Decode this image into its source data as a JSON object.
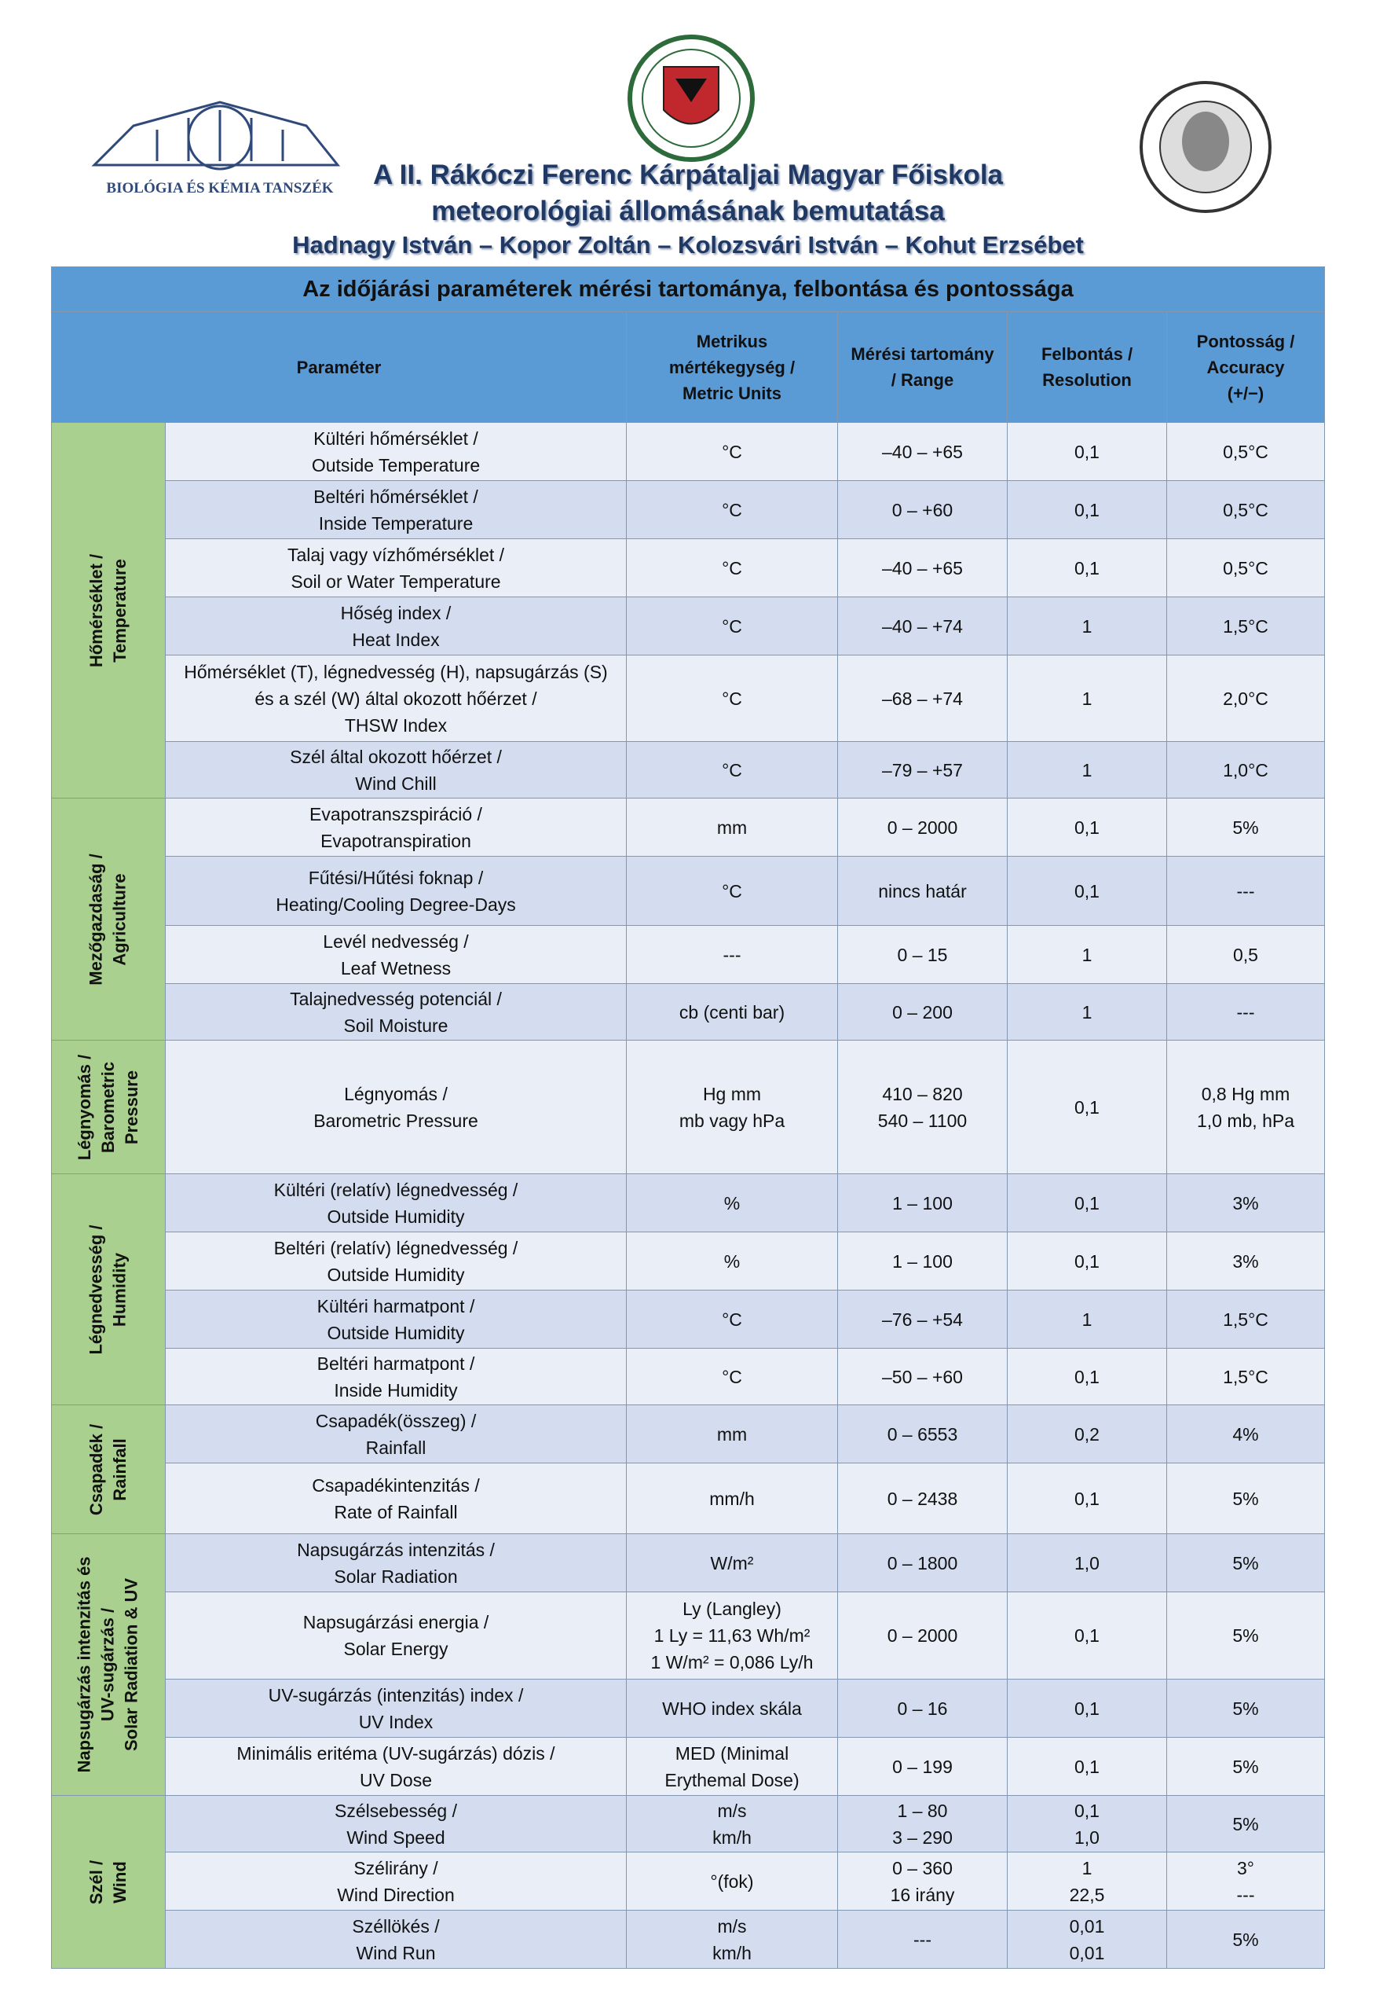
{
  "header": {
    "title": [
      "A II. Rákóczi Ferenc Kárpátaljai Magyar Főiskola",
      "meteorológiai állomásának bemutatása"
    ],
    "authors": "Hadnagy István – Kopor Zoltán – Kolozsvári István – Kohut Erzsébet",
    "logo_text": "BIOLÓGIA ÉS KÉMIA TANSZÉK"
  },
  "table": {
    "title": "Az időjárási paraméterek mérési tartománya, felbontása és pontossága",
    "columns": [
      [
        "Paraméter"
      ],
      [
        "Metrikus",
        "mértékegység /",
        "Metric Units"
      ],
      [
        "Mérési tartomány",
        "/ Range"
      ],
      [
        "Felbontás /",
        "Resolution"
      ],
      [
        "Pontosság /",
        "Accuracy",
        "(+/−)"
      ]
    ],
    "groups": [
      {
        "label": [
          "Hőmérséklet /",
          "Temperature"
        ],
        "rows": [
          [
            [
              "Kültéri hőmérséklet /",
              "Outside Temperature"
            ],
            [
              "°C"
            ],
            [
              "–40 – +65"
            ],
            [
              "0,1"
            ],
            [
              "0,5°C"
            ]
          ],
          [
            [
              "Beltéri hőmérséklet /",
              "Inside Temperature"
            ],
            [
              "°C"
            ],
            [
              "0 – +60"
            ],
            [
              "0,1"
            ],
            [
              "0,5°C"
            ]
          ],
          [
            [
              "Talaj vagy vízhőmérséklet /",
              "Soil or Water Temperature"
            ],
            [
              "°C"
            ],
            [
              "–40 – +65"
            ],
            [
              "0,1"
            ],
            [
              "0,5°C"
            ]
          ],
          [
            [
              "Hőség index /",
              "Heat Index"
            ],
            [
              "°C"
            ],
            [
              "–40 – +74"
            ],
            [
              "1"
            ],
            [
              "1,5°C"
            ]
          ],
          [
            [
              "Hőmérséklet (T), légnedvesség (H), napsugárzás (S)",
              "és a szél (W) által okozott hőérzet /",
              "THSW Index"
            ],
            [
              "°C"
            ],
            [
              "–68 – +74"
            ],
            [
              "1"
            ],
            [
              "2,0°C"
            ]
          ],
          [
            [
              "Szél által okozott hőérzet /",
              "Wind Chill"
            ],
            [
              "°C"
            ],
            [
              "–79 – +57"
            ],
            [
              "1"
            ],
            [
              "1,0°C"
            ]
          ]
        ]
      },
      {
        "label": [
          "Mezőgazdaság /",
          "Agriculture"
        ],
        "rows": [
          [
            [
              "Evapotranszspiráció /",
              "Evapotranspiration"
            ],
            [
              "mm"
            ],
            [
              "0 – 2000"
            ],
            [
              "0,1"
            ],
            [
              "5%"
            ]
          ],
          [
            [
              "Fűtési/Hűtési foknap /",
              "Heating/Cooling Degree-Days"
            ],
            [
              "°C"
            ],
            [
              "nincs határ"
            ],
            [
              "0,1"
            ],
            [
              "---"
            ]
          ],
          [
            [
              "Levél nedvesség /",
              "Leaf Wetness"
            ],
            [
              "---"
            ],
            [
              "0 – 15"
            ],
            [
              "1"
            ],
            [
              "0,5"
            ]
          ],
          [
            [
              "Talajnedvesség potenciál /",
              "Soil Moisture"
            ],
            [
              "cb (centi bar)"
            ],
            [
              "0 – 200"
            ],
            [
              "1"
            ],
            [
              "---"
            ]
          ]
        ]
      },
      {
        "label": [
          "Légnyomás /",
          "Barometric",
          "Pressure"
        ],
        "rows": [
          [
            [
              "Légnyomás /",
              "Barometric Pressure"
            ],
            [
              "Hg mm",
              "mb vagy hPa"
            ],
            [
              "410 – 820",
              "540 – 1100"
            ],
            [
              "0,1"
            ],
            [
              "0,8 Hg mm",
              "1,0 mb, hPa"
            ]
          ]
        ]
      },
      {
        "label": [
          "Légnedvesség /",
          "Humidity"
        ],
        "rows": [
          [
            [
              "Kültéri (relatív) légnedvesség /",
              "Outside Humidity"
            ],
            [
              "%"
            ],
            [
              "1 – 100"
            ],
            [
              "0,1"
            ],
            [
              "3%"
            ]
          ],
          [
            [
              "Beltéri (relatív) légnedvesség /",
              "Outside Humidity"
            ],
            [
              "%"
            ],
            [
              "1 – 100"
            ],
            [
              "0,1"
            ],
            [
              "3%"
            ]
          ],
          [
            [
              "Kültéri harmatpont /",
              "Outside Humidity"
            ],
            [
              "°C"
            ],
            [
              "–76 – +54"
            ],
            [
              "1"
            ],
            [
              "1,5°C"
            ]
          ],
          [
            [
              "Beltéri harmatpont /",
              "Inside Humidity"
            ],
            [
              "°C"
            ],
            [
              "–50 – +60"
            ],
            [
              "0,1"
            ],
            [
              "1,5°C"
            ]
          ]
        ]
      },
      {
        "label": [
          "Csapadék /",
          "Rainfall"
        ],
        "rows": [
          [
            [
              "Csapadék(összeg) /",
              "Rainfall"
            ],
            [
              "mm"
            ],
            [
              "0 – 6553"
            ],
            [
              "0,2"
            ],
            [
              "4%"
            ]
          ],
          [
            [
              "Csapadékintenzitás /",
              "Rate of Rainfall"
            ],
            [
              "mm/h"
            ],
            [
              "0 – 2438"
            ],
            [
              "0,1"
            ],
            [
              "5%"
            ]
          ]
        ]
      },
      {
        "label": [
          "Napsugárzás intenzitás és",
          "UV-sugárzás /",
          "Solar Radiation & UV"
        ],
        "rows": [
          [
            [
              "Napsugárzás intenzitás /",
              "Solar Radiation"
            ],
            [
              "W/m²"
            ],
            [
              "0 – 1800"
            ],
            [
              "1,0"
            ],
            [
              "5%"
            ]
          ],
          [
            [
              "Napsugárzási energia /",
              "Solar Energy"
            ],
            [
              "Ly (Langley)",
              "1 Ly = 11,63 Wh/m²",
              "1 W/m² = 0,086 Ly/h"
            ],
            [
              "0 – 2000"
            ],
            [
              "0,1"
            ],
            [
              "5%"
            ]
          ],
          [
            [
              "UV-sugárzás (intenzitás) index /",
              "UV Index"
            ],
            [
              "WHO index skála"
            ],
            [
              "0 – 16"
            ],
            [
              "0,1"
            ],
            [
              "5%"
            ]
          ],
          [
            [
              "Minimális eritéma (UV-sugárzás) dózis /",
              "UV Dose"
            ],
            [
              "MED (Minimal",
              "Erythemal Dose)"
            ],
            [
              "0 – 199"
            ],
            [
              "0,1"
            ],
            [
              "5%"
            ]
          ]
        ]
      },
      {
        "label": [
          "Szél /",
          "Wind"
        ],
        "rows": [
          [
            [
              "Szélsebesség /",
              "Wind Speed"
            ],
            [
              "m/s",
              "km/h"
            ],
            [
              "1 – 80",
              "3 – 290"
            ],
            [
              "0,1",
              "1,0"
            ],
            [
              "5%"
            ]
          ],
          [
            [
              "Szélirány /",
              "Wind Direction"
            ],
            [
              "°(fok)"
            ],
            [
              "0 – 360",
              "16 irány"
            ],
            [
              "1",
              "22,5"
            ],
            [
              "3°",
              "---"
            ]
          ],
          [
            [
              "Széllökés /",
              "Wind Run"
            ],
            [
              "m/s",
              "km/h"
            ],
            [
              "---"
            ],
            [
              "0,01",
              "0,01"
            ],
            [
              "5%"
            ]
          ]
        ]
      }
    ]
  }
}
